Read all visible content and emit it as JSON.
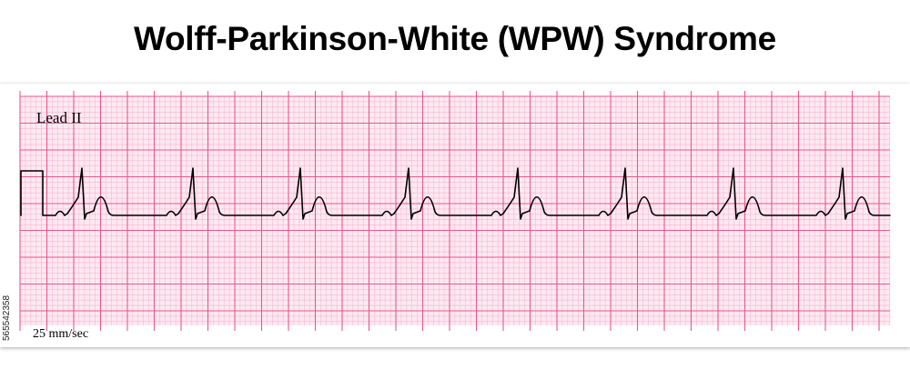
{
  "title": "Wolff-Parkinson-White (WPW) Syndrome",
  "lead_label": "Lead II",
  "speed_label": "25 mm/sec",
  "stock_id": "565542358",
  "colors": {
    "grid_minor": "#f5b8d2",
    "grid_major": "#e8588f",
    "paper": "#fde9f1",
    "trace": "#000000"
  },
  "ecg": {
    "beats": 8,
    "features": [
      "short PR interval",
      "delta wave",
      "wide QRS"
    ]
  }
}
